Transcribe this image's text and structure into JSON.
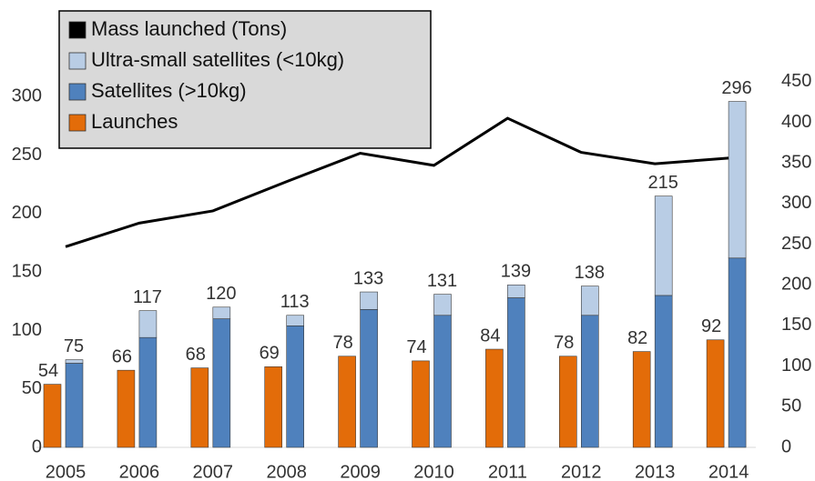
{
  "chart_data": {
    "type": "bar",
    "categories": [
      "2005",
      "2006",
      "2007",
      "2008",
      "2009",
      "2010",
      "2011",
      "2012",
      "2013",
      "2014"
    ],
    "series": [
      {
        "name": "Mass launched (Tons)",
        "type": "line",
        "axis": "y2",
        "color": "#000000",
        "values": [
          247,
          276,
          291,
          327,
          362,
          347,
          405,
          363,
          349,
          356
        ]
      },
      {
        "name": "Ultra-small satellites (<10kg)",
        "type": "bar",
        "stack": "satellites",
        "color": "#b9cde5",
        "values": [
          3,
          23,
          10,
          9,
          15,
          18,
          11,
          25,
          85,
          134
        ]
      },
      {
        "name": "Satellites (>10kg)",
        "type": "bar",
        "stack": "satellites",
        "color": "#4f81bd",
        "values": [
          72,
          94,
          110,
          104,
          118,
          113,
          128,
          113,
          130,
          162
        ]
      },
      {
        "name": "Launches",
        "type": "bar",
        "stack": "launches",
        "color": "#e36c09",
        "values": [
          54,
          66,
          68,
          69,
          78,
          74,
          84,
          78,
          82,
          92
        ]
      }
    ],
    "totals": [
      75,
      117,
      120,
      113,
      133,
      131,
      139,
      138,
      215,
      296
    ],
    "ylim": [
      0,
      340
    ],
    "yticks": [
      0,
      50,
      100,
      150,
      200,
      250,
      300
    ],
    "y2lim": [
      0,
      489
    ],
    "y2ticks": [
      0,
      50,
      100,
      150,
      200,
      250,
      300,
      350,
      400,
      450
    ],
    "grid": false,
    "legend": "top-left"
  }
}
